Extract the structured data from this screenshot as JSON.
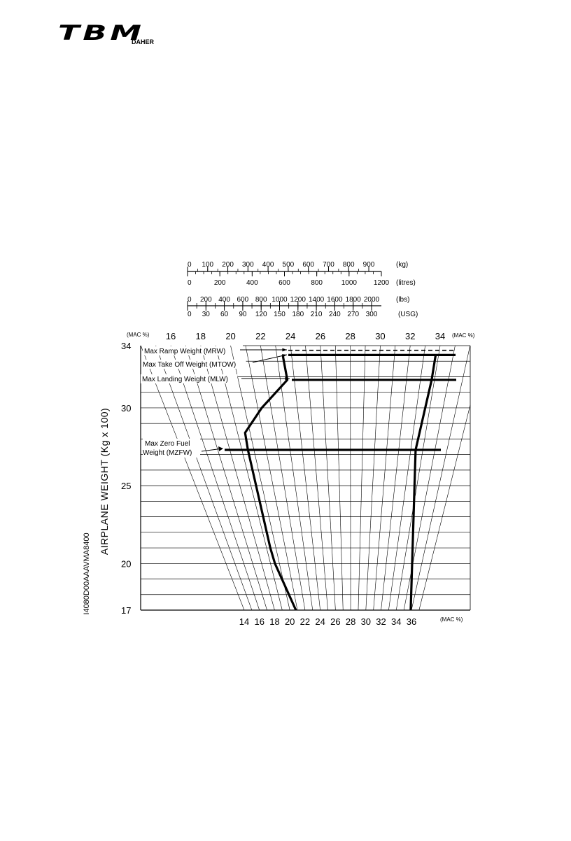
{
  "brand": {
    "logo_text": "TBM",
    "sub_text": "DAHER"
  },
  "document_code": "I4080D00AAAVMA8400",
  "conversion_scales": [
    {
      "unit": "(kg)",
      "ticks": [
        "0",
        "100",
        "200",
        "300",
        "400",
        "500",
        "600",
        "700",
        "800",
        "900"
      ],
      "values": [
        0,
        100,
        200,
        300,
        400,
        500,
        600,
        700,
        800,
        900
      ],
      "max": 1000
    },
    {
      "unit": "(litres)",
      "ticks": [
        "0",
        "200",
        "400",
        "600",
        "800",
        "1000",
        "1200"
      ],
      "values": [
        0,
        200,
        400,
        600,
        800,
        1000,
        1200
      ],
      "max": 1200
    },
    {
      "unit": "(lbs)",
      "ticks": [
        "0",
        "200",
        "400",
        "600",
        "800",
        "1000",
        "1200",
        "1400",
        "1600",
        "1800",
        "2000"
      ],
      "values": [
        0,
        200,
        400,
        600,
        800,
        1000,
        1200,
        1400,
        1600,
        1800,
        2000
      ],
      "max": 2000
    },
    {
      "unit": "(USG)",
      "ticks": [
        "0",
        "30",
        "60",
        "90",
        "120",
        "150",
        "180",
        "210",
        "240",
        "270",
        "300"
      ],
      "values": [
        0,
        30,
        60,
        90,
        120,
        150,
        180,
        210,
        240,
        270,
        300
      ],
      "max": 300
    }
  ],
  "chart_data": {
    "type": "line",
    "title": "",
    "ylabel": "AIRPLANE WEIGHT (Kg x 100)",
    "ylim": [
      17,
      34
    ],
    "y_ticks": [
      17,
      20,
      25,
      30,
      34
    ],
    "top_axis": {
      "unit_left": "(MAC %)",
      "unit_right": "(MAC %)",
      "ticks": [
        "16",
        "18",
        "20",
        "22",
        "24",
        "26",
        "28",
        "30",
        "32",
        "34"
      ]
    },
    "bottom_axis": {
      "unit": "(MAC %)",
      "ticks": [
        "14",
        "16",
        "18",
        "20",
        "22",
        "24",
        "26",
        "28",
        "30",
        "32",
        "34",
        "36"
      ]
    },
    "grid": true,
    "limits": [
      {
        "label": "Max Ramp Weight (MRW)",
        "weight": 33.7,
        "style": "dashed"
      },
      {
        "label": "Max Take Off Weight (MTOW)",
        "weight": 33.4,
        "style": "solid"
      },
      {
        "label": "Max Landing Weight (MLW)",
        "weight": 31.8,
        "style": "solid"
      },
      {
        "label": "Max Zero Fuel Weight (MZFW)",
        "weight": 27.3,
        "style": "solid"
      }
    ],
    "envelope": {
      "forward_limit_mac": [
        {
          "weight": 17.0,
          "mac": 20.8
        },
        {
          "weight": 20.0,
          "mac": 19.5
        },
        {
          "weight": 21.0,
          "mac": 19.4
        },
        {
          "weight": 27.3,
          "mac": 19.5
        },
        {
          "weight": 28.4,
          "mac": 19.6
        },
        {
          "weight": 30.0,
          "mac": 21.3
        },
        {
          "weight": 31.8,
          "mac": 23.5
        },
        {
          "weight": 33.4,
          "mac": 23.4
        }
      ],
      "aft_limit_mac": [
        {
          "weight": 17.0,
          "mac": 35.9
        },
        {
          "weight": 27.3,
          "mac": 33.4
        },
        {
          "weight": 31.8,
          "mac": 33.8
        },
        {
          "weight": 33.4,
          "mac": 33.8
        }
      ]
    }
  }
}
